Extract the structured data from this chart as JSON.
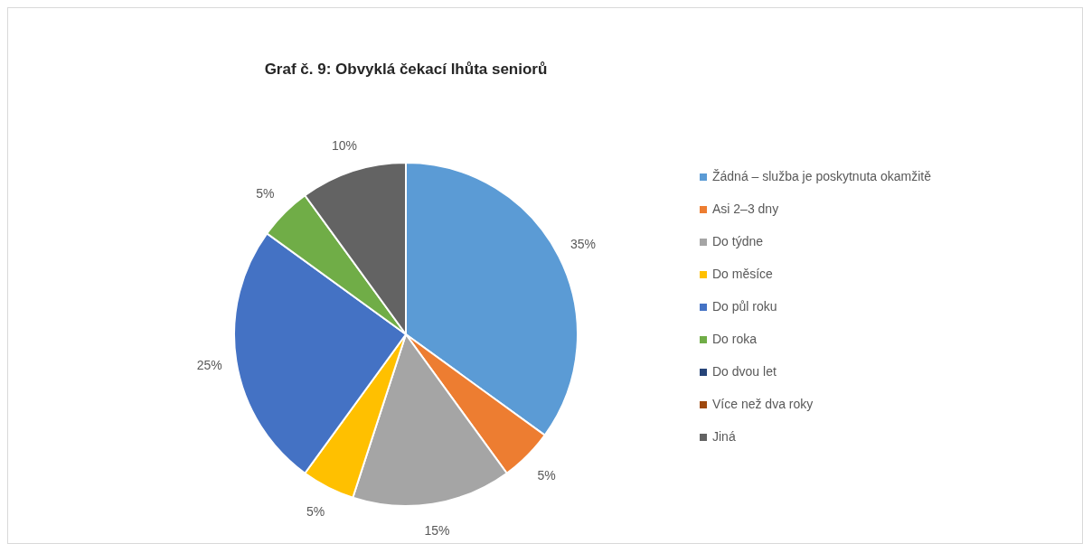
{
  "chart_data": {
    "type": "pie",
    "title": "Graf č. 9: Obvyklá čekací lhůta seniorů",
    "categories": [
      "Žádná – služba je poskytnuta okamžitě",
      "Asi 2–3 dny",
      "Do týdne",
      "Do měsíce",
      "Do půl roku",
      "Do roka",
      "Do dvou let",
      "Více než dva roky",
      "Jiná"
    ],
    "values": [
      35,
      5,
      15,
      5,
      25,
      5,
      0,
      0,
      10
    ],
    "colors": [
      "#5b9bd5",
      "#ed7d31",
      "#a5a5a5",
      "#ffc000",
      "#4472c4",
      "#70ad47",
      "#264478",
      "#9e480e",
      "#636363"
    ],
    "value_labels": [
      "35%",
      "5%",
      "15%",
      "5%",
      "25%",
      "5%",
      null,
      null,
      "10%"
    ],
    "legend": "right"
  }
}
